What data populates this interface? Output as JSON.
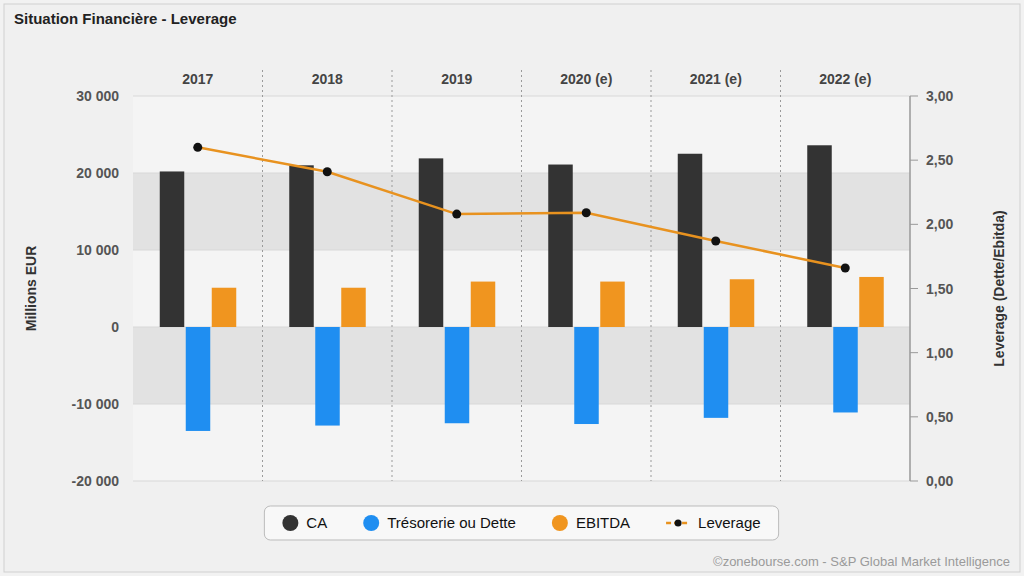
{
  "chart_data": {
    "type": "bar",
    "title": "Situation Financière - Leverage",
    "y_label": "Millions EUR",
    "y2_label": "Leverage (Dette/Ebitda)",
    "source": "©zonebourse.com - S&P Global Market Intelligence",
    "categories": [
      "2017",
      "2018",
      "2019",
      "2020 (e)",
      "2021 (e)",
      "2022 (e)"
    ],
    "ylim": [
      -20000,
      30000
    ],
    "yticks": [
      {
        "value": -20000,
        "label": "-20 000"
      },
      {
        "value": -10000,
        "label": "-10 000"
      },
      0,
      {
        "value": 10000,
        "label": "10 000"
      },
      {
        "value": 20000,
        "label": "20 000"
      },
      {
        "value": 30000,
        "label": "30 000"
      }
    ],
    "y2lim": [
      0,
      3
    ],
    "y2ticks": [
      {
        "value": 0,
        "label": "0,00"
      },
      {
        "value": 0.5,
        "label": "0,50"
      },
      {
        "value": 1,
        "label": "1,00"
      },
      {
        "value": 1.5,
        "label": "1,50"
      },
      {
        "value": 2,
        "label": "2,00"
      },
      {
        "value": 2.5,
        "label": "2,50"
      },
      {
        "value": 3,
        "label": "3,00"
      }
    ],
    "grid": true,
    "legend": "bottom",
    "series": [
      {
        "name": "CA",
        "color": "#333333",
        "values": [
          20200,
          21000,
          21900,
          21100,
          22500,
          23600
        ]
      },
      {
        "name": "Trésorerie ou Dette",
        "color": "#1f8ef1",
        "values": [
          -13500,
          -12800,
          -12500,
          -12600,
          -11800,
          -11100
        ]
      },
      {
        "name": "EBITDA",
        "color": "#f0951f",
        "values": [
          5100,
          5100,
          5900,
          5900,
          6200,
          6500
        ]
      },
      {
        "name": "Leverage",
        "type": "line",
        "axis": "y2",
        "color": "#e8921f",
        "marker": "circle",
        "values": [
          2.6,
          2.41,
          2.08,
          2.09,
          1.87,
          1.66
        ]
      }
    ]
  }
}
